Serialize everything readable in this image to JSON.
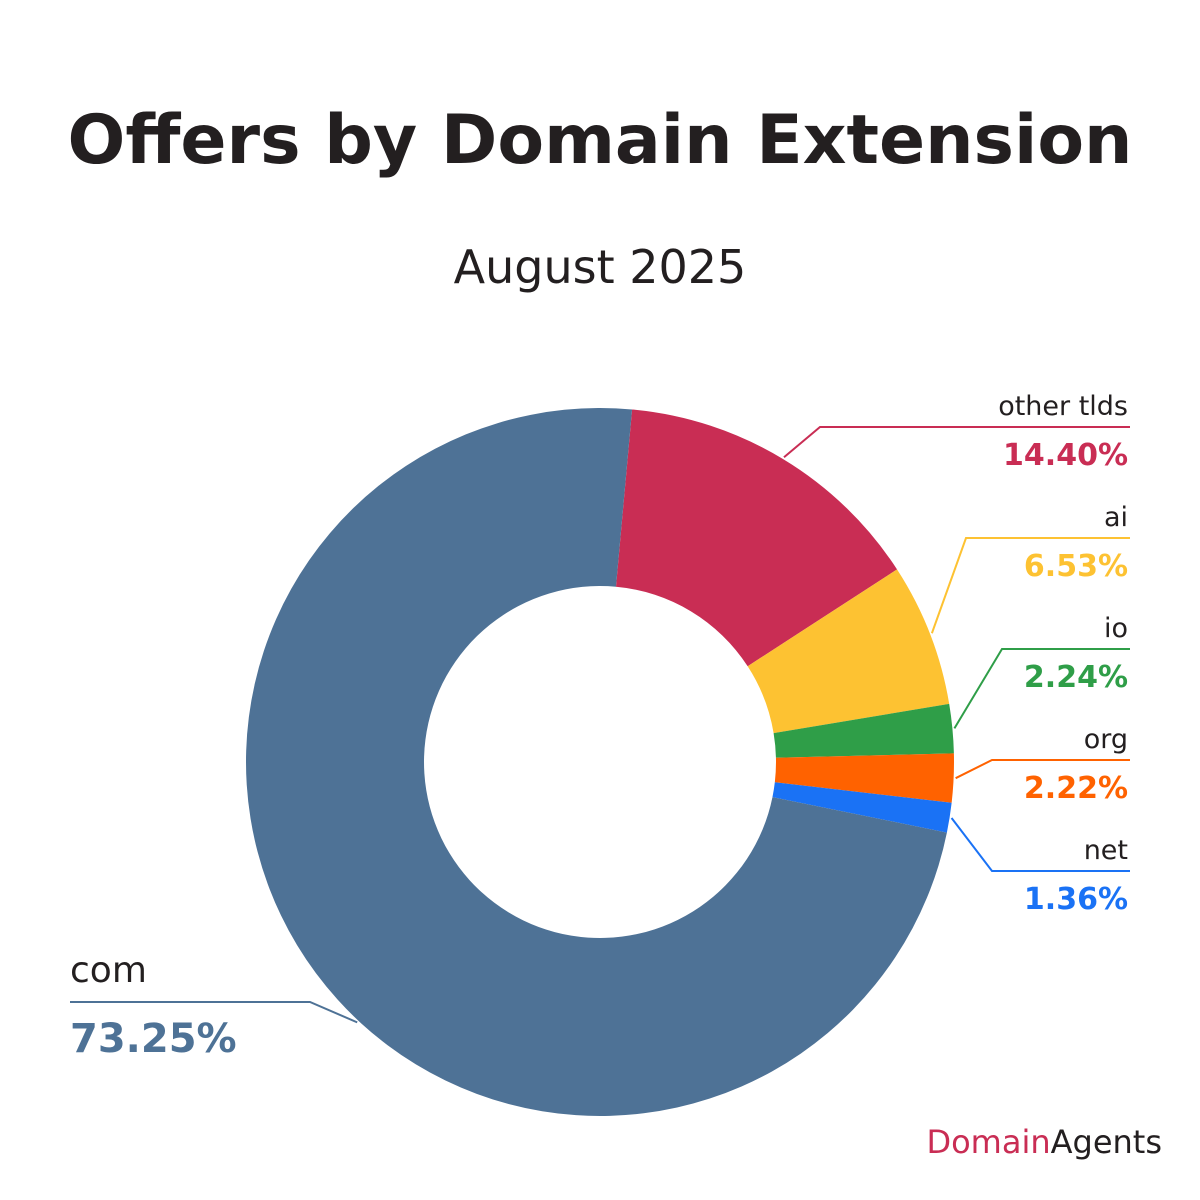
{
  "chart_data": {
    "type": "pie",
    "variant": "donut",
    "title": "Offers by Domain Extension",
    "subtitle": "August 2025",
    "slices": [
      {
        "label": "com",
        "value": 73.25,
        "value_text": "73.25%",
        "color": "#4e7296"
      },
      {
        "label": "other tlds",
        "value": 14.4,
        "value_text": "14.40%",
        "color": "#c92d54"
      },
      {
        "label": "ai",
        "value": 6.53,
        "value_text": "6.53%",
        "color": "#fdc232"
      },
      {
        "label": "io",
        "value": 2.24,
        "value_text": "2.24%",
        "color": "#2f9e48"
      },
      {
        "label": "org",
        "value": 2.22,
        "value_text": "2.22%",
        "color": "#ff6200"
      },
      {
        "label": "net",
        "value": 1.36,
        "value_text": "1.36%",
        "color": "#1a72f5"
      }
    ],
    "legend": "none"
  },
  "brand": {
    "part1": "Domain",
    "part2": "Agents",
    "color1": "#c92d54",
    "color2": "#231f20"
  }
}
